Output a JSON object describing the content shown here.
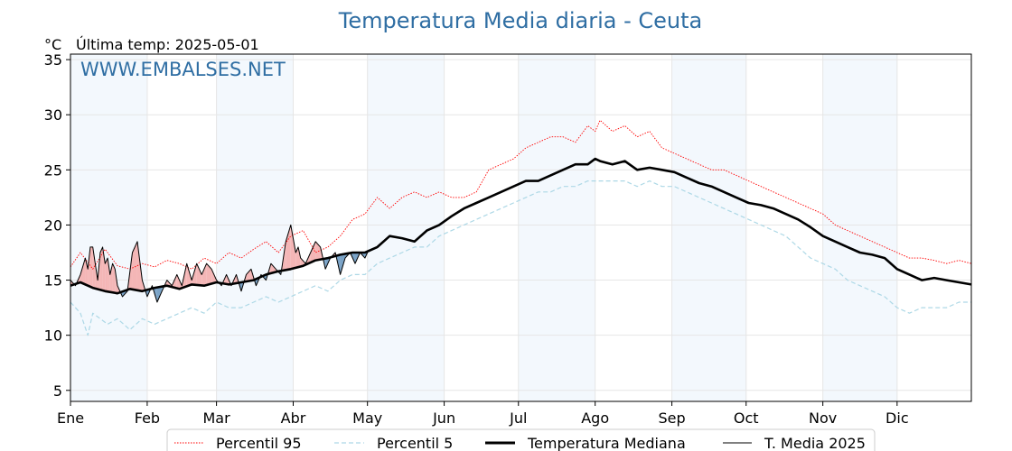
{
  "chart_data": {
    "type": "line",
    "title": "Temperatura Media diaria - Ceuta",
    "unit_label": "°C",
    "last_temp_label": "Última temp: 2025-05-01",
    "watermark": "WWW.EMBALSES.NET",
    "xlabel": "",
    "ylabel": "",
    "xlim_day": [
      1,
      365
    ],
    "ylim": [
      4,
      35.5
    ],
    "yticks": [
      5,
      10,
      15,
      20,
      25,
      30,
      35
    ],
    "months": [
      {
        "label": "Ene",
        "day": 1
      },
      {
        "label": "Feb",
        "day": 32
      },
      {
        "label": "Mar",
        "day": 60
      },
      {
        "label": "Abr",
        "day": 91
      },
      {
        "label": "May",
        "day": 121
      },
      {
        "label": "Jun",
        "day": 152
      },
      {
        "label": "Jul",
        "day": 182
      },
      {
        "label": "Ago",
        "day": 213
      },
      {
        "label": "Sep",
        "day": 244
      },
      {
        "label": "Oct",
        "day": 274
      },
      {
        "label": "Nov",
        "day": 305
      },
      {
        "label": "Dic",
        "day": 335
      }
    ],
    "grid": true,
    "legend_position": "bottom",
    "series": [
      {
        "name": "Percentil 95",
        "color": "#ff0000",
        "style": "dotted",
        "x": [
          1,
          5,
          10,
          15,
          20,
          25,
          30,
          35,
          40,
          45,
          50,
          55,
          60,
          65,
          70,
          75,
          80,
          85,
          90,
          95,
          100,
          105,
          110,
          115,
          120,
          125,
          130,
          135,
          140,
          145,
          150,
          155,
          160,
          165,
          170,
          175,
          180,
          185,
          190,
          195,
          200,
          205,
          210,
          213,
          215,
          220,
          225,
          230,
          235,
          240,
          245,
          250,
          255,
          260,
          265,
          270,
          275,
          280,
          285,
          290,
          295,
          300,
          305,
          310,
          315,
          320,
          325,
          330,
          335,
          340,
          345,
          350,
          355,
          360,
          365
        ],
        "values": [
          16.2,
          17.5,
          16.0,
          17.8,
          16.3,
          16.0,
          16.5,
          16.2,
          16.8,
          16.5,
          16.0,
          17.0,
          16.5,
          17.5,
          17.0,
          17.8,
          18.5,
          17.5,
          19.0,
          19.5,
          17.5,
          18.0,
          19.0,
          20.5,
          21.0,
          22.5,
          21.5,
          22.5,
          23.0,
          22.5,
          23.0,
          22.5,
          22.5,
          23.0,
          25.0,
          25.5,
          26.0,
          27.0,
          27.5,
          28.0,
          28.0,
          27.5,
          29.0,
          28.5,
          29.5,
          28.5,
          29.0,
          28.0,
          28.5,
          27.0,
          26.5,
          26.0,
          25.5,
          25.0,
          25.0,
          24.5,
          24.0,
          23.5,
          23.0,
          22.5,
          22.0,
          21.5,
          21.0,
          20.0,
          19.5,
          19.0,
          18.5,
          18.0,
          17.5,
          17.0,
          17.0,
          16.8,
          16.5,
          16.8,
          16.5
        ]
      },
      {
        "name": "Percentil 5",
        "color": "#add8e6",
        "style": "dashed",
        "x": [
          1,
          5,
          8,
          10,
          13,
          16,
          20,
          25,
          30,
          35,
          40,
          45,
          50,
          55,
          60,
          65,
          70,
          75,
          80,
          85,
          90,
          95,
          100,
          105,
          110,
          115,
          120,
          125,
          130,
          135,
          140,
          145,
          150,
          155,
          160,
          165,
          170,
          175,
          180,
          185,
          190,
          195,
          200,
          205,
          210,
          215,
          220,
          225,
          230,
          235,
          240,
          245,
          250,
          255,
          260,
          265,
          270,
          275,
          280,
          285,
          290,
          295,
          300,
          305,
          310,
          315,
          320,
          325,
          330,
          335,
          340,
          345,
          350,
          355,
          360,
          365
        ],
        "values": [
          13.0,
          12.0,
          10.0,
          12.0,
          11.5,
          11.0,
          11.5,
          10.5,
          11.5,
          11.0,
          11.5,
          12.0,
          12.5,
          12.0,
          13.0,
          12.5,
          12.5,
          13.0,
          13.5,
          13.0,
          13.5,
          14.0,
          14.5,
          14.0,
          15.0,
          15.5,
          15.5,
          16.5,
          17.0,
          17.5,
          18.0,
          18.0,
          19.0,
          19.5,
          20.0,
          20.5,
          21.0,
          21.5,
          22.0,
          22.5,
          23.0,
          23.0,
          23.5,
          23.5,
          24.0,
          24.0,
          24.0,
          24.0,
          23.5,
          24.0,
          23.5,
          23.5,
          23.0,
          22.5,
          22.0,
          21.5,
          21.0,
          20.5,
          20.0,
          19.5,
          19.0,
          18.0,
          17.0,
          16.5,
          16.0,
          15.0,
          14.5,
          14.0,
          13.5,
          12.5,
          12.0,
          12.5,
          12.5,
          12.5,
          13.0,
          13.0
        ]
      },
      {
        "name": "Temperatura Mediana",
        "color": "#000000",
        "style": "solid-thick",
        "x": [
          1,
          5,
          10,
          15,
          20,
          25,
          30,
          35,
          40,
          45,
          50,
          55,
          60,
          65,
          70,
          75,
          80,
          85,
          90,
          95,
          100,
          105,
          110,
          115,
          120,
          125,
          130,
          135,
          140,
          145,
          150,
          155,
          160,
          165,
          170,
          175,
          180,
          185,
          190,
          195,
          200,
          205,
          210,
          213,
          215,
          220,
          225,
          230,
          235,
          240,
          245,
          250,
          255,
          260,
          265,
          270,
          275,
          280,
          285,
          290,
          295,
          300,
          305,
          310,
          315,
          320,
          325,
          330,
          335,
          340,
          345,
          350,
          355,
          360,
          365
        ],
        "values": [
          14.5,
          14.8,
          14.3,
          14.0,
          13.8,
          14.2,
          14.0,
          14.3,
          14.5,
          14.2,
          14.6,
          14.5,
          14.8,
          14.6,
          14.8,
          15.0,
          15.5,
          15.8,
          16.0,
          16.3,
          16.8,
          17.0,
          17.3,
          17.5,
          17.5,
          18.0,
          19.0,
          18.8,
          18.5,
          19.5,
          20.0,
          20.8,
          21.5,
          22.0,
          22.5,
          23.0,
          23.5,
          24.0,
          24.0,
          24.5,
          25.0,
          25.5,
          25.5,
          26.0,
          25.8,
          25.5,
          25.8,
          25.0,
          25.2,
          25.0,
          24.8,
          24.3,
          23.8,
          23.5,
          23.0,
          22.5,
          22.0,
          21.8,
          21.5,
          21.0,
          20.5,
          19.8,
          19.0,
          18.5,
          18.0,
          17.5,
          17.3,
          17.0,
          16.0,
          15.5,
          15.0,
          15.2,
          15.0,
          14.8,
          14.6
        ]
      },
      {
        "name": "T. Media 2025",
        "color": "#000000",
        "style": "solid-thin",
        "x": [
          1,
          3,
          5,
          7,
          8,
          9,
          10,
          11,
          12,
          13,
          14,
          15,
          16,
          17,
          18,
          19,
          20,
          22,
          24,
          26,
          28,
          30,
          32,
          34,
          36,
          38,
          40,
          42,
          44,
          46,
          48,
          50,
          52,
          54,
          56,
          58,
          60,
          62,
          64,
          66,
          68,
          70,
          72,
          74,
          76,
          78,
          80,
          82,
          84,
          86,
          88,
          90,
          92,
          93,
          94,
          96,
          98,
          100,
          102,
          104,
          106,
          108,
          110,
          112,
          114,
          116,
          118,
          120,
          121
        ],
        "values": [
          15.0,
          14.5,
          15.5,
          17.0,
          16.0,
          18.0,
          18.0,
          16.5,
          15.0,
          17.5,
          18.0,
          16.5,
          17.0,
          15.5,
          16.5,
          16.0,
          14.5,
          13.5,
          14.0,
          17.5,
          18.5,
          15.0,
          13.5,
          14.5,
          13.0,
          14.0,
          15.0,
          14.5,
          15.5,
          14.5,
          16.5,
          15.0,
          16.5,
          15.5,
          16.5,
          16.0,
          15.0,
          14.5,
          15.5,
          14.5,
          15.5,
          14.0,
          15.5,
          16.0,
          14.5,
          15.5,
          15.0,
          16.5,
          16.0,
          15.5,
          18.5,
          20.0,
          17.5,
          18.0,
          17.0,
          16.5,
          17.5,
          18.5,
          18.0,
          16.0,
          17.0,
          17.5,
          15.5,
          17.0,
          17.5,
          16.5,
          17.5,
          17.0,
          17.5
        ]
      }
    ]
  }
}
